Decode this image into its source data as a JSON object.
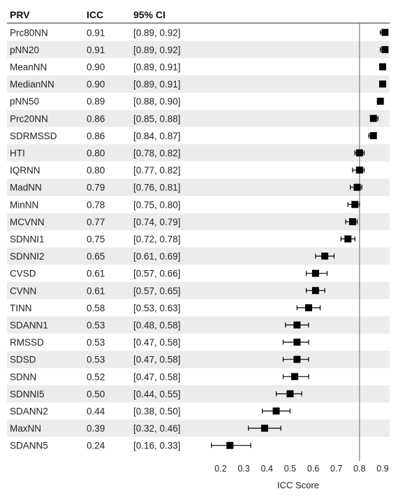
{
  "chart_data": {
    "type": "forest",
    "columns": {
      "name": "PRV",
      "icc": "ICC",
      "ci": "95% CI"
    },
    "xlabel": "ICC Score",
    "xlim": [
      0.2,
      0.9
    ],
    "xticks": [
      "0.2",
      "0.3",
      "0.4",
      "0.5",
      "0.6",
      "0.7",
      "0.8",
      "0.9"
    ],
    "reference_line": 0.8,
    "zebra_color": "#ececec",
    "marker_color": "#000000",
    "rows": [
      {
        "name": "Prc80NN",
        "icc": 0.91,
        "icc_text": "0.91",
        "lo": 0.89,
        "hi": 0.92,
        "ci_text": "[0.89, 0.92]"
      },
      {
        "name": "pNN20",
        "icc": 0.91,
        "icc_text": "0.91",
        "lo": 0.89,
        "hi": 0.92,
        "ci_text": "[0.89, 0.92]"
      },
      {
        "name": "MeanNN",
        "icc": 0.9,
        "icc_text": "0.90",
        "lo": 0.89,
        "hi": 0.91,
        "ci_text": "[0.89, 0.91]"
      },
      {
        "name": "MedianNN",
        "icc": 0.9,
        "icc_text": "0.90",
        "lo": 0.89,
        "hi": 0.91,
        "ci_text": "[0.89, 0.91]"
      },
      {
        "name": "pNN50",
        "icc": 0.89,
        "icc_text": "0.89",
        "lo": 0.88,
        "hi": 0.9,
        "ci_text": "[0.88, 0.90]"
      },
      {
        "name": "Prc20NN",
        "icc": 0.86,
        "icc_text": "0.86",
        "lo": 0.85,
        "hi": 0.88,
        "ci_text": "[0.85, 0.88]"
      },
      {
        "name": "SDRMSSD",
        "icc": 0.86,
        "icc_text": "0.86",
        "lo": 0.84,
        "hi": 0.87,
        "ci_text": "[0.84, 0.87]"
      },
      {
        "name": "HTI",
        "icc": 0.8,
        "icc_text": "0.80",
        "lo": 0.78,
        "hi": 0.82,
        "ci_text": "[0.78, 0.82]"
      },
      {
        "name": "IQRNN",
        "icc": 0.8,
        "icc_text": "0.80",
        "lo": 0.77,
        "hi": 0.82,
        "ci_text": "[0.77, 0.82]"
      },
      {
        "name": "MadNN",
        "icc": 0.79,
        "icc_text": "0.79",
        "lo": 0.76,
        "hi": 0.81,
        "ci_text": "[0.76, 0.81]"
      },
      {
        "name": "MinNN",
        "icc": 0.78,
        "icc_text": "0.78",
        "lo": 0.75,
        "hi": 0.8,
        "ci_text": "[0.75, 0.80]"
      },
      {
        "name": "MCVNN",
        "icc": 0.77,
        "icc_text": "0.77",
        "lo": 0.74,
        "hi": 0.79,
        "ci_text": "[0.74, 0.79]"
      },
      {
        "name": "SDNNI1",
        "icc": 0.75,
        "icc_text": "0.75",
        "lo": 0.72,
        "hi": 0.78,
        "ci_text": "[0.72, 0.78]"
      },
      {
        "name": "SDNNI2",
        "icc": 0.65,
        "icc_text": "0.65",
        "lo": 0.61,
        "hi": 0.69,
        "ci_text": "[0.61, 0.69]"
      },
      {
        "name": "CVSD",
        "icc": 0.61,
        "icc_text": "0.61",
        "lo": 0.57,
        "hi": 0.66,
        "ci_text": "[0.57, 0.66]"
      },
      {
        "name": "CVNN",
        "icc": 0.61,
        "icc_text": "0.61",
        "lo": 0.57,
        "hi": 0.65,
        "ci_text": "[0.57, 0.65]"
      },
      {
        "name": "TINN",
        "icc": 0.58,
        "icc_text": "0.58",
        "lo": 0.53,
        "hi": 0.63,
        "ci_text": "[0.53, 0.63]"
      },
      {
        "name": "SDANN1",
        "icc": 0.53,
        "icc_text": "0.53",
        "lo": 0.48,
        "hi": 0.58,
        "ci_text": "[0.48, 0.58]"
      },
      {
        "name": "RMSSD",
        "icc": 0.53,
        "icc_text": "0.53",
        "lo": 0.47,
        "hi": 0.58,
        "ci_text": "[0.47, 0.58]"
      },
      {
        "name": "SDSD",
        "icc": 0.53,
        "icc_text": "0.53",
        "lo": 0.47,
        "hi": 0.58,
        "ci_text": "[0.47, 0.58]"
      },
      {
        "name": "SDNN",
        "icc": 0.52,
        "icc_text": "0.52",
        "lo": 0.47,
        "hi": 0.58,
        "ci_text": "[0.47, 0.58]"
      },
      {
        "name": "SDNNI5",
        "icc": 0.5,
        "icc_text": "0.50",
        "lo": 0.44,
        "hi": 0.55,
        "ci_text": "[0.44, 0.55]"
      },
      {
        "name": "SDANN2",
        "icc": 0.44,
        "icc_text": "0.44",
        "lo": 0.38,
        "hi": 0.5,
        "ci_text": "[0.38, 0.50]"
      },
      {
        "name": "MaxNN",
        "icc": 0.39,
        "icc_text": "0.39",
        "lo": 0.32,
        "hi": 0.46,
        "ci_text": "[0.32, 0.46]"
      },
      {
        "name": "SDANN5",
        "icc": 0.24,
        "icc_text": "0.24",
        "lo": 0.16,
        "hi": 0.33,
        "ci_text": "[0.16, 0.33]"
      }
    ]
  }
}
